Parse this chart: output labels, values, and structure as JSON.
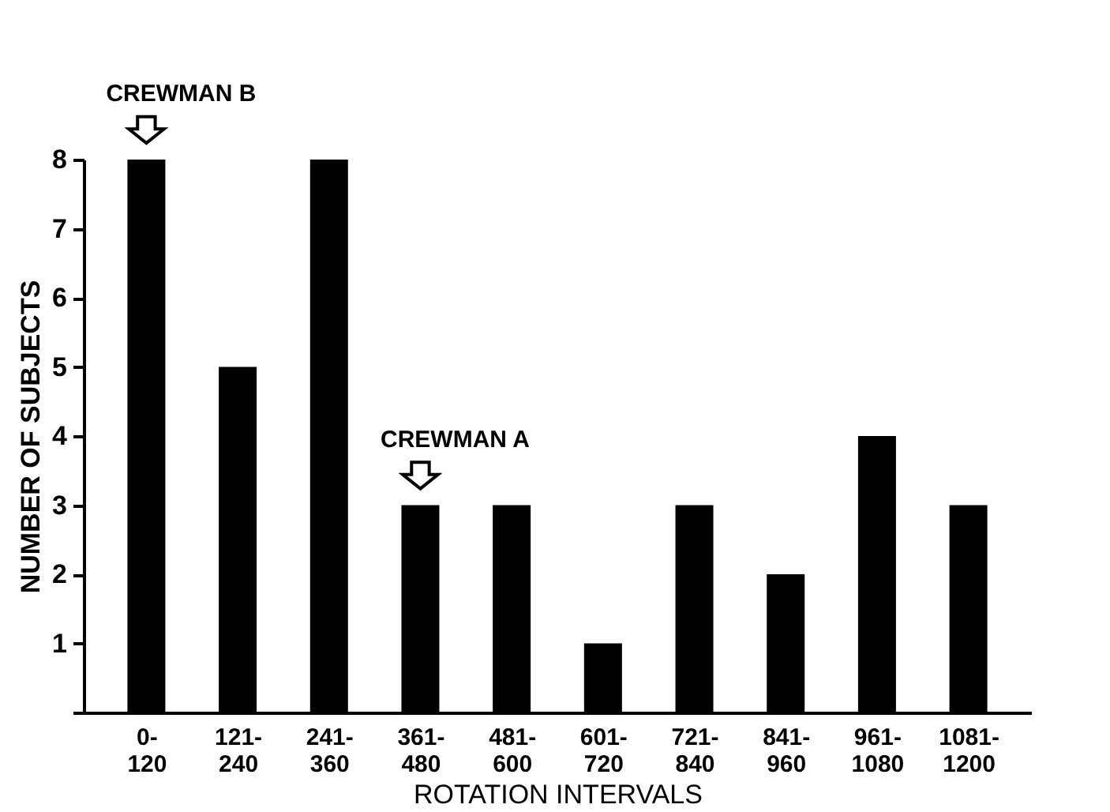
{
  "chart_data": {
    "type": "bar",
    "categories": [
      "0-120",
      "121-240",
      "241-360",
      "361-480",
      "481-600",
      "601-720",
      "721-840",
      "841-960",
      "961-1080",
      "1081-1200"
    ],
    "values": [
      8,
      5,
      8,
      3,
      3,
      1,
      3,
      2,
      4,
      3
    ],
    "color": "#000000",
    "xlabel": "ROTATION INTERVALS",
    "ylabel": "NUMBER OF SUBJECTS",
    "ylim": [
      0,
      8
    ],
    "yticks": [
      {
        "value": 0,
        "label": null
      },
      1,
      2,
      3,
      4,
      5,
      6,
      7,
      8
    ],
    "grid": false,
    "annotations": [
      {
        "text": "CREWMAN B",
        "x": "0-120",
        "y": 8
      },
      {
        "text": "CREWMAN A",
        "x": "361-480",
        "y": 3
      }
    ]
  }
}
